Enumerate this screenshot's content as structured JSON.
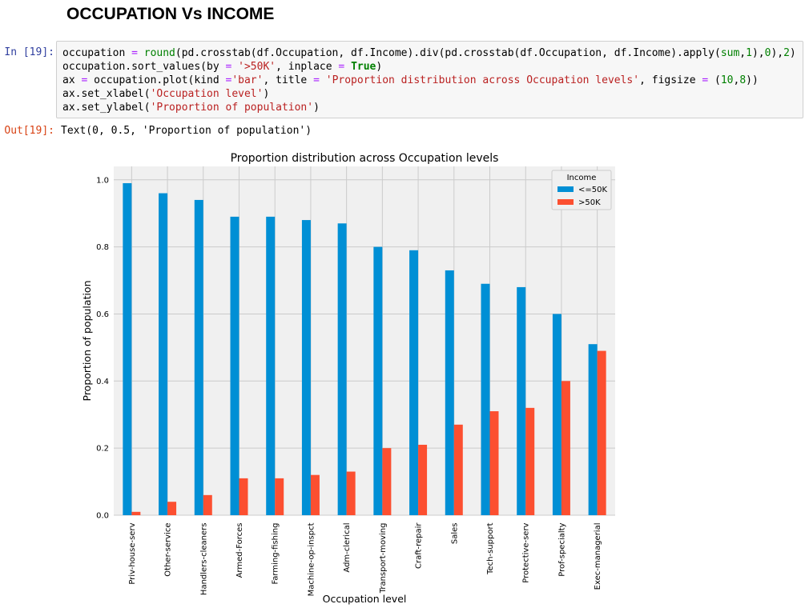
{
  "notebook": {
    "heading": "OCCUPATION Vs INCOME",
    "in_prompt": "In [19]:",
    "out_prompt": "Out[19]:",
    "code_lines": [
      [
        {
          "t": "occupation "
        },
        {
          "t": "=",
          "c": "tk-op"
        },
        {
          "t": " "
        },
        {
          "t": "round",
          "c": "tk-bi"
        },
        {
          "t": "(pd.crosstab(df.Occupation, df.Income).div(pd.crosstab(df.Occupation, df.Income).apply("
        },
        {
          "t": "sum",
          "c": "tk-bi"
        },
        {
          "t": ","
        },
        {
          "t": "1",
          "c": "tk-num"
        },
        {
          "t": "),"
        },
        {
          "t": "0",
          "c": "tk-num"
        },
        {
          "t": "),"
        },
        {
          "t": "2",
          "c": "tk-num"
        },
        {
          "t": ")"
        }
      ],
      [
        {
          "t": "occupation.sort_values(by "
        },
        {
          "t": "=",
          "c": "tk-op"
        },
        {
          "t": " "
        },
        {
          "t": "'>50K'",
          "c": "tk-str"
        },
        {
          "t": ", inplace "
        },
        {
          "t": "=",
          "c": "tk-op"
        },
        {
          "t": " "
        },
        {
          "t": "True",
          "c": "tk-kw"
        },
        {
          "t": ")"
        }
      ],
      [
        {
          "t": "ax "
        },
        {
          "t": "=",
          "c": "tk-op"
        },
        {
          "t": " occupation.plot(kind "
        },
        {
          "t": "=",
          "c": "tk-op"
        },
        {
          "t": "'bar'",
          "c": "tk-str"
        },
        {
          "t": ", title "
        },
        {
          "t": "=",
          "c": "tk-op"
        },
        {
          "t": " "
        },
        {
          "t": "'Proportion distribution across Occupation levels'",
          "c": "tk-str"
        },
        {
          "t": ", figsize "
        },
        {
          "t": "=",
          "c": "tk-op"
        },
        {
          "t": " ("
        },
        {
          "t": "10",
          "c": "tk-num"
        },
        {
          "t": ","
        },
        {
          "t": "8",
          "c": "tk-num"
        },
        {
          "t": "))"
        }
      ],
      [
        {
          "t": "ax.set_xlabel("
        },
        {
          "t": "'Occupation level'",
          "c": "tk-str"
        },
        {
          "t": ")"
        }
      ],
      [
        {
          "t": "ax.set_ylabel("
        },
        {
          "t": "'Proportion of population'",
          "c": "tk-str"
        },
        {
          "t": ")"
        }
      ]
    ],
    "output_text": "Text(0, 0.5, 'Proportion of population')"
  },
  "chart_data": {
    "type": "bar",
    "title": "Proportion distribution across Occupation levels",
    "xlabel": "Occupation level",
    "ylabel": "Proportion of population",
    "ylim": [
      0,
      1.04
    ],
    "yticks": [
      "0.0",
      "0.2",
      "0.4",
      "0.6",
      "0.8",
      "1.0"
    ],
    "grid": true,
    "legend": {
      "title": "Income",
      "placement": "top-right"
    },
    "categories": [
      "Priv-house-serv",
      "Other-service",
      "Handlers-cleaners",
      "Armed-Forces",
      "Farming-fishing",
      "Machine-op-inspct",
      "Adm-clerical",
      "Transport-moving",
      "Craft-repair",
      "Sales",
      "Tech-support",
      "Protective-serv",
      "Prof-specialty",
      "Exec-managerial"
    ],
    "series": [
      {
        "name": "<=50K",
        "color": "#008fd5",
        "values": [
          0.99,
          0.96,
          0.94,
          0.89,
          0.89,
          0.88,
          0.87,
          0.8,
          0.79,
          0.73,
          0.69,
          0.68,
          0.6,
          0.51
        ]
      },
      {
        "name": ">50K",
        "color": "#fc4f30",
        "values": [
          0.01,
          0.04,
          0.06,
          0.11,
          0.11,
          0.12,
          0.13,
          0.2,
          0.21,
          0.27,
          0.31,
          0.32,
          0.4,
          0.49
        ]
      }
    ]
  }
}
